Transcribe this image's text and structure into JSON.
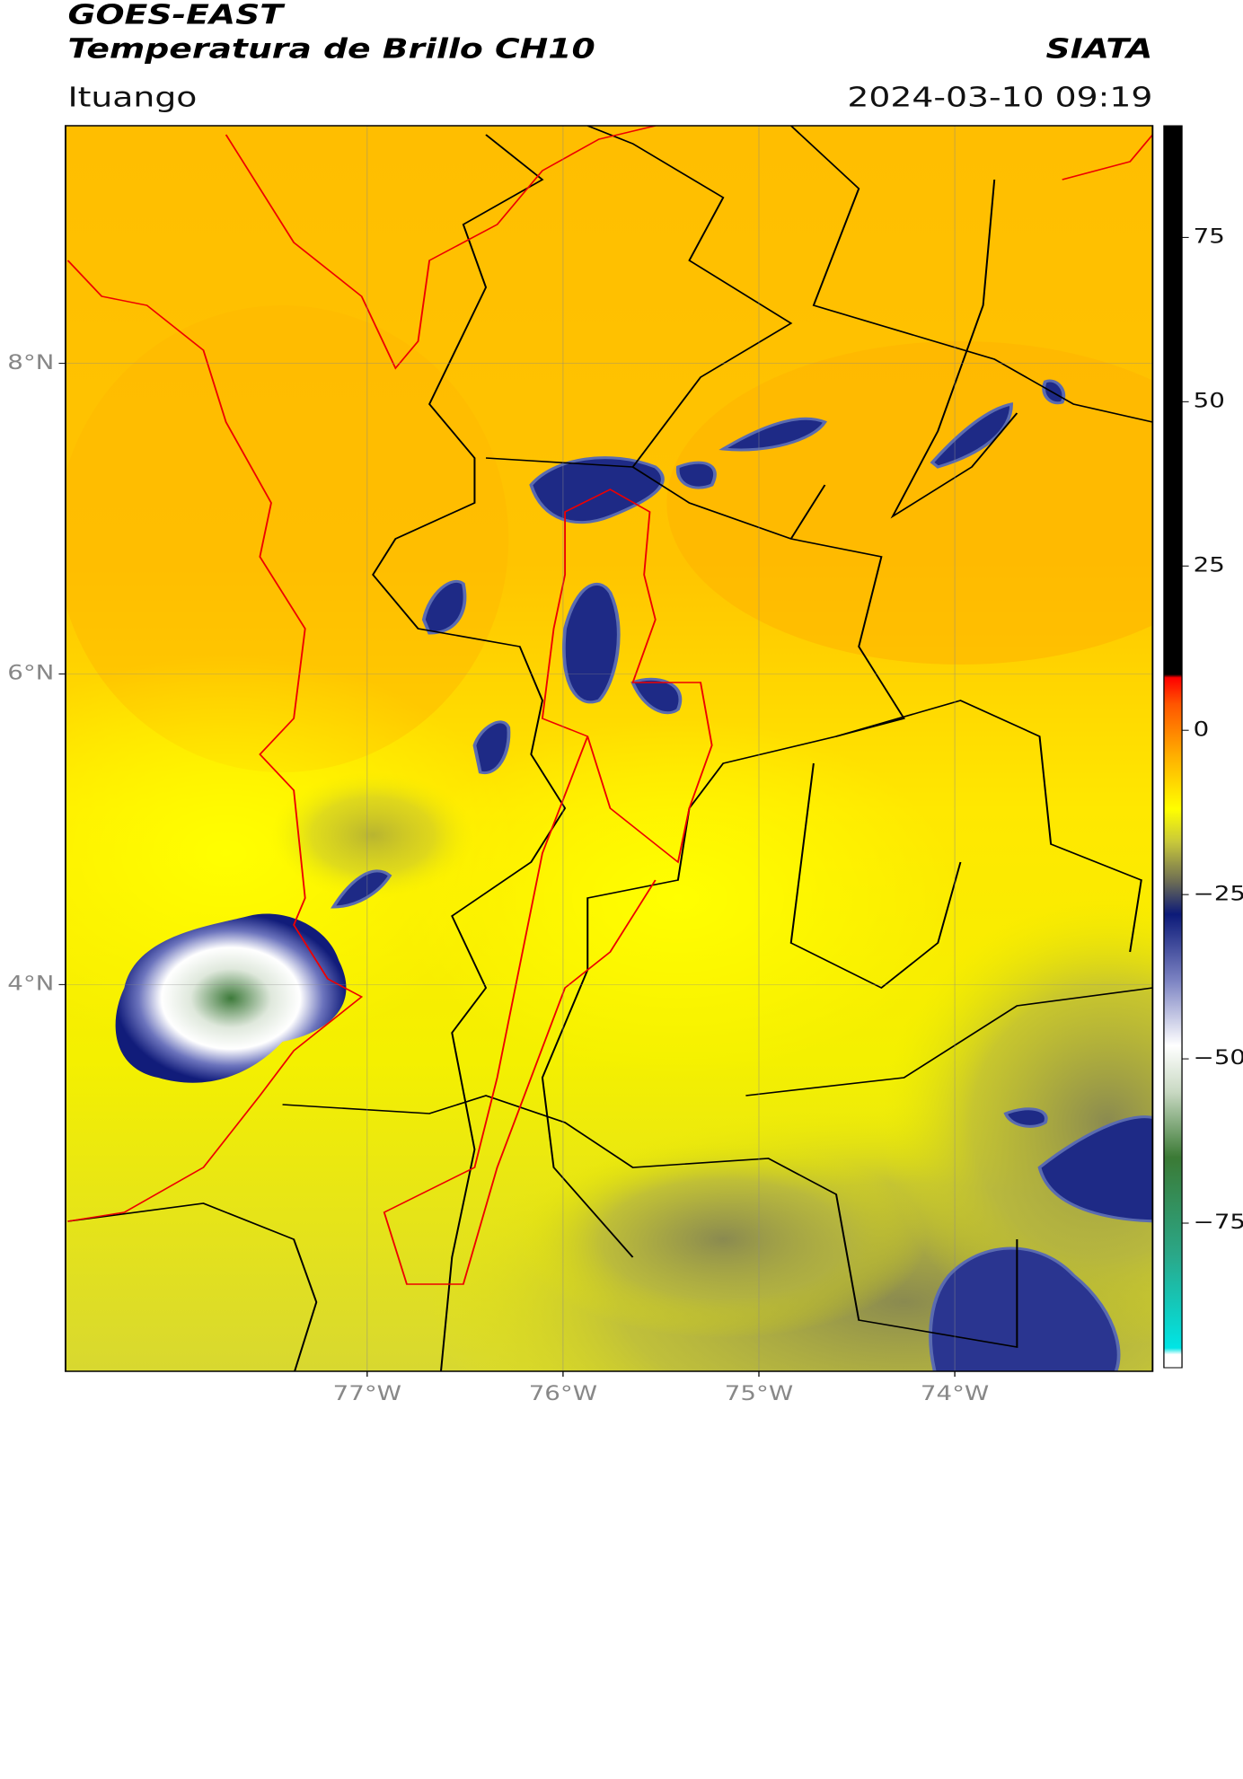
{
  "header": {
    "satellite": "GOES-EAST",
    "product": "Temperatura de Brillo CH10",
    "agency": "SIATA",
    "region": "Ituango",
    "datetime": "2024-03-10 09:19"
  },
  "map": {
    "xlim": [
      -78.54,
      -72.99
    ],
    "ylim": [
      1.51,
      9.53
    ],
    "xticks": [
      {
        "value": -77,
        "label": "77°W"
      },
      {
        "value": -76,
        "label": "76°W"
      },
      {
        "value": -75,
        "label": "75°W"
      },
      {
        "value": -74,
        "label": "74°W"
      }
    ],
    "yticks": [
      {
        "value": 4,
        "label": "4°N"
      },
      {
        "value": 6,
        "label": "6°N"
      },
      {
        "value": 8,
        "label": "8°N"
      }
    ],
    "grid": true
  },
  "colorbar": {
    "lim": [
      -97,
      92
    ],
    "ticks": [
      {
        "value": -75,
        "label": "−75"
      },
      {
        "value": -50,
        "label": "−50"
      },
      {
        "value": -25,
        "label": "−25"
      },
      0,
      25,
      50,
      75
    ],
    "colors": [
      {
        "value": -97,
        "color": "#ffffff"
      },
      {
        "value": -95,
        "color": "#ffffff"
      },
      {
        "value": -94,
        "color": "#00e5e5"
      },
      {
        "value": -80,
        "color": "#2aa889"
      },
      {
        "value": -65,
        "color": "#3b7a35"
      },
      {
        "value": -55,
        "color": "#c9d9c3"
      },
      {
        "value": -48,
        "color": "#ffffff"
      },
      {
        "value": -38,
        "color": "#7b82c2"
      },
      {
        "value": -28,
        "color": "#0c1a78"
      },
      {
        "value": -23,
        "color": "#6d6d54"
      },
      {
        "value": -17,
        "color": "#c8c83a"
      },
      {
        "value": -12,
        "color": "#ffff00"
      },
      {
        "value": -4,
        "color": "#ffb000"
      },
      {
        "value": 4,
        "color": "#ff5500"
      },
      {
        "value": 8,
        "color": "#ff0000"
      },
      {
        "value": 8.5,
        "color": "#000000"
      },
      {
        "value": 92,
        "color": "#000000"
      }
    ]
  }
}
